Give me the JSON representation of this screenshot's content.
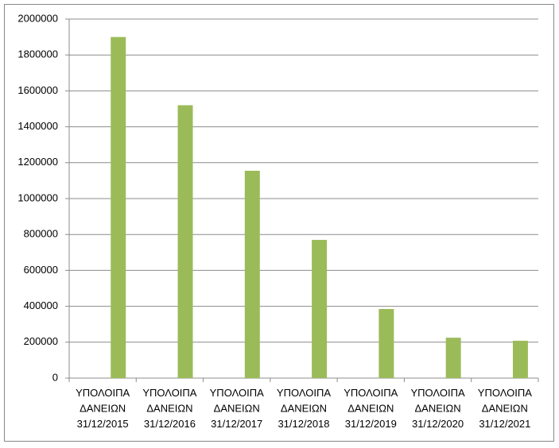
{
  "chart_data": {
    "type": "bar",
    "categories": [
      [
        "ΥΠΟΛΟΙΠΑ",
        "ΔΑΝΕΙΩΝ",
        "31/12/2015"
      ],
      [
        "ΥΠΟΛΟΙΠΑ",
        "ΔΑΝΕΙΩΝ",
        "31/12/2016"
      ],
      [
        "ΥΠΟΛΟΙΠΑ",
        "ΔΑΝΕΙΩΝ",
        "31/12/2017"
      ],
      [
        "ΥΠΟΛΟΙΠΑ",
        "ΔΑΝΕΙΩΝ",
        "31/12/2018"
      ],
      [
        "ΥΠΟΛΟΙΠΑ",
        "ΔΑΝΕΙΩΝ",
        "31/12/2019"
      ],
      [
        "ΥΠΟΛΟΙΠΑ",
        "ΔΑΝΕΙΩΝ",
        "31/12/2020"
      ],
      [
        "ΥΠΟΛΟΙΠΑ",
        "ΔΑΝΕΙΩΝ",
        "31/12/2021"
      ]
    ],
    "values": [
      1900000,
      1520000,
      1155000,
      770000,
      385000,
      225000,
      208000
    ],
    "color": "#9bbb59",
    "ylim": [
      0,
      2000000
    ],
    "yticks": [
      0,
      200000,
      400000,
      600000,
      800000,
      1000000,
      1200000,
      1400000,
      1600000,
      1800000,
      2000000
    ],
    "grid": true
  }
}
